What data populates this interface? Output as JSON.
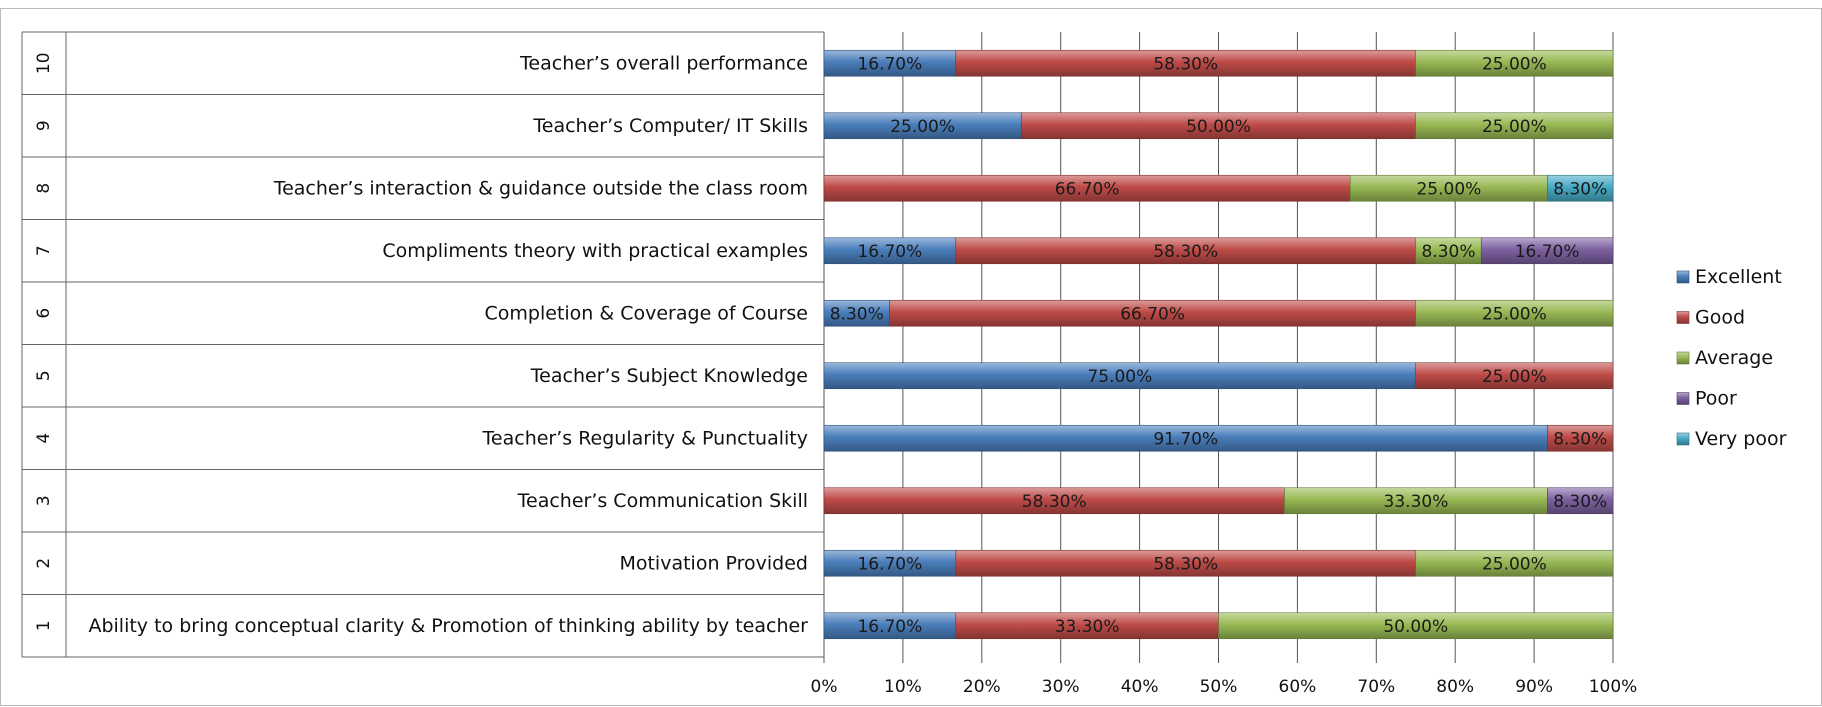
{
  "chart_data": {
    "type": "bar",
    "orientation": "horizontal",
    "stacked": "percent",
    "categories": [
      {
        "num": "1",
        "label": "Ability to bring conceptual clarity & Promotion of thinking ability by teacher"
      },
      {
        "num": "2",
        "label": "Motivation Provided"
      },
      {
        "num": "3",
        "label": "Teacher’s Communication  Skill"
      },
      {
        "num": "4",
        "label": "Teacher’s Regularity & Punctuality"
      },
      {
        "num": "5",
        "label": "Teacher’s Subject Knowledge"
      },
      {
        "num": "6",
        "label": "Completion & Coverage of Course"
      },
      {
        "num": "7",
        "label": "Compliments theory with practical examples"
      },
      {
        "num": "8",
        "label": "Teacher’s interaction & guidance outside the class room"
      },
      {
        "num": "9",
        "label": "Teacher’s Computer/  IT Skills"
      },
      {
        "num": "10",
        "label": "Teacher’s overall performance"
      }
    ],
    "series": [
      {
        "name": "Excellent",
        "color": "#4a7ebb",
        "values": [
          16.7,
          16.7,
          0,
          91.7,
          75.0,
          8.3,
          16.7,
          0,
          25.0,
          16.7
        ]
      },
      {
        "name": "Good",
        "color": "#be4b48",
        "values": [
          33.3,
          58.3,
          58.3,
          8.3,
          25.0,
          66.7,
          58.3,
          66.7,
          50.0,
          58.3
        ]
      },
      {
        "name": "Average",
        "color": "#98b954",
        "values": [
          50.0,
          25.0,
          33.3,
          0,
          0,
          25.0,
          8.3,
          25.0,
          25.0,
          25.0
        ]
      },
      {
        "name": "Poor",
        "color": "#7d60a0",
        "values": [
          0,
          0,
          8.3,
          0,
          0,
          0,
          16.7,
          0,
          0,
          0
        ]
      },
      {
        "name": "Very poor",
        "color": "#46aac5",
        "values": [
          0,
          0,
          0,
          0,
          0,
          0,
          0,
          8.3,
          0,
          0
        ]
      }
    ],
    "data_labels": [
      [
        "16.70%",
        "33.30%",
        "50.00%",
        "",
        ""
      ],
      [
        "16.70%",
        "58.30%",
        "25.00%",
        "",
        ""
      ],
      [
        "",
        "58.30%",
        "33.30%",
        "8.30%",
        ""
      ],
      [
        "91.70%",
        "8.30%",
        "",
        "",
        ""
      ],
      [
        "75.00%",
        "25.00%",
        "",
        "",
        ""
      ],
      [
        "8.30%",
        "66.70%",
        "25.00%",
        "",
        ""
      ],
      [
        "16.70%",
        "58.30%",
        "8.30%",
        "16.70%",
        ""
      ],
      [
        "",
        "66.70%",
        "25.00%",
        "",
        "8.30%"
      ],
      [
        "25.00%",
        "50.00%",
        "25.00%",
        "",
        ""
      ],
      [
        "16.70%",
        "58.30%",
        "25.00%",
        "",
        ""
      ]
    ],
    "x_ticks": [
      "0%",
      "10%",
      "20%",
      "30%",
      "40%",
      "50%",
      "60%",
      "70%",
      "80%",
      "90%",
      "100%"
    ],
    "xlim": [
      0,
      100
    ],
    "grid": true,
    "legend_position": "right",
    "title": "",
    "xlabel": "",
    "ylabel": ""
  }
}
